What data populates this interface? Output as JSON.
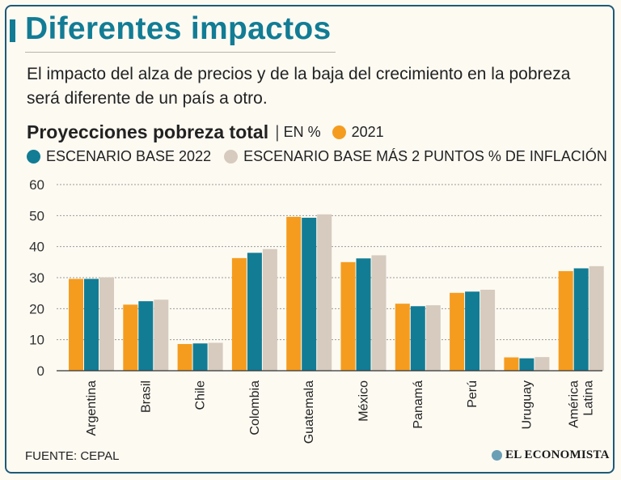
{
  "header": {
    "title": "Diferentes impactos",
    "subtitle": "El impacto del alza de precios y de la baja del crecimiento en la pobreza será diferente de un país a otro."
  },
  "legend": {
    "chart_title": "Proyecciones pobreza total",
    "unit": "EN %",
    "item_2021": "2021",
    "item_base": "ESCENARIO BASE 2022",
    "item_infl": "ESCENARIO BASE MÁS 2 PUNTOS % DE INFLACIÓN"
  },
  "colors": {
    "2021": "#f59c1f",
    "base_2022": "#127c95",
    "base_plus_2": "#d6cbbe",
    "title": "#127c95"
  },
  "footer": {
    "source": "FUENTE: CEPAL",
    "brand": "EL ECONOMISTA"
  },
  "chart_data": {
    "type": "bar",
    "title": "Proyecciones pobreza total",
    "ylabel": "EN %",
    "ylim": [
      0,
      60
    ],
    "yticks": [
      0,
      10,
      20,
      30,
      40,
      50,
      60
    ],
    "grid": true,
    "categories": [
      "Argentina",
      "Brasil",
      "Chile",
      "Colombia",
      "Guatemala",
      "México",
      "Panamá",
      "Perú",
      "Uruguay",
      "América Latina"
    ],
    "category_lines": [
      [
        "Argentina"
      ],
      [
        "Brasil"
      ],
      [
        "Chile"
      ],
      [
        "Colombia"
      ],
      [
        "Guatemala"
      ],
      [
        "México"
      ],
      [
        "Panamá"
      ],
      [
        "Perú"
      ],
      [
        "Uruguay"
      ],
      [
        "América",
        "Latina"
      ]
    ],
    "series": [
      {
        "name": "2021",
        "values": [
          29.6,
          21.3,
          8.6,
          36.3,
          49.6,
          35.0,
          21.6,
          25.1,
          4.3,
          32.1
        ]
      },
      {
        "name": "ESCENARIO BASE 2022",
        "values": [
          29.6,
          22.4,
          8.8,
          38.0,
          49.3,
          36.2,
          20.8,
          25.5,
          4.0,
          33.0
        ]
      },
      {
        "name": "ESCENARIO BASE MÁS 2 PUNTOS % DE INFLACIÓN",
        "values": [
          30.1,
          22.9,
          9.0,
          39.2,
          50.4,
          37.2,
          21.1,
          26.1,
          4.4,
          33.7
        ]
      }
    ]
  }
}
